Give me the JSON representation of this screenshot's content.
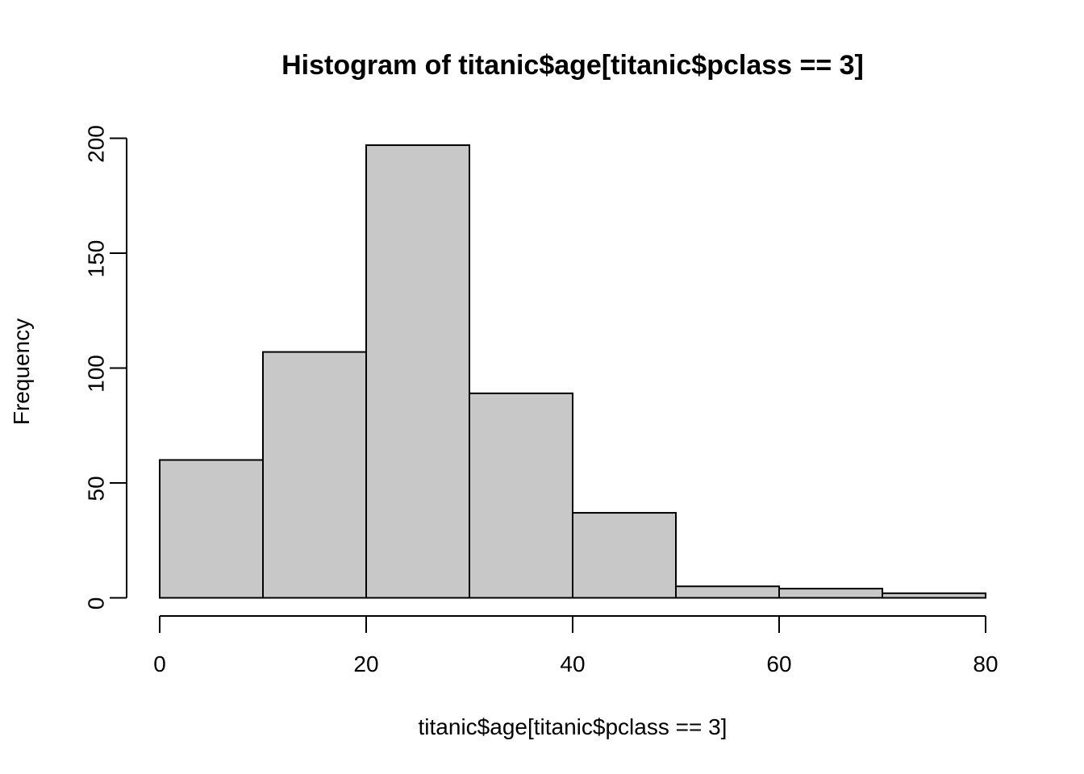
{
  "chart_data": {
    "type": "bar",
    "title": "Histogram of titanic$age[titanic$pclass == 3]",
    "xlabel": "titanic$age[titanic$pclass == 3]",
    "ylabel": "Frequency",
    "bins": [
      {
        "from": 0,
        "to": 10,
        "count": 60
      },
      {
        "from": 10,
        "to": 20,
        "count": 107
      },
      {
        "from": 20,
        "to": 30,
        "count": 197
      },
      {
        "from": 30,
        "to": 40,
        "count": 89
      },
      {
        "from": 40,
        "to": 50,
        "count": 37
      },
      {
        "from": 50,
        "to": 60,
        "count": 5
      },
      {
        "from": 60,
        "to": 70,
        "count": 4
      },
      {
        "from": 70,
        "to": 80,
        "count": 2
      }
    ],
    "xlim": [
      0,
      80
    ],
    "ylim": [
      0,
      200
    ],
    "x_ticks": [
      0,
      20,
      40,
      60,
      80
    ],
    "y_ticks": [
      0,
      50,
      100,
      150,
      200
    ],
    "bar_color": "#c8c8c8",
    "grid": false
  }
}
